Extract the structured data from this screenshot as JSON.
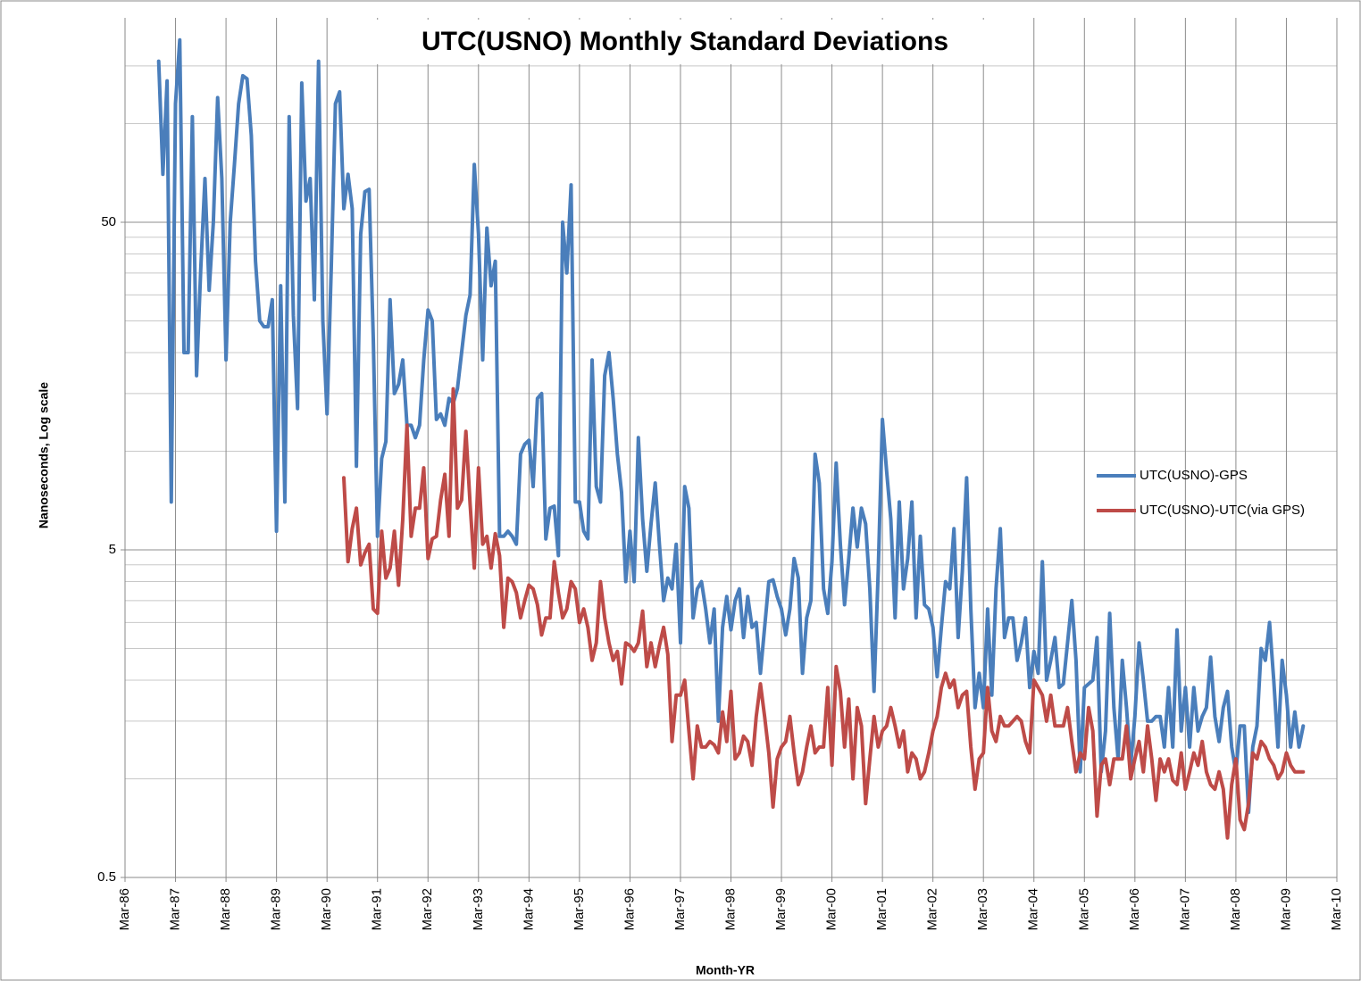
{
  "chart_data": {
    "type": "line",
    "title": "UTC(USNO) Monthly Standard Deviations",
    "x_label": "Month-YR",
    "y_label": "Nanoseconds,  Log scale",
    "log_scale": true,
    "grid": true,
    "legend": "right",
    "ylim": [
      0.5,
      200
    ],
    "yticks": [
      0.5,
      5,
      50
    ],
    "yticks_minor": [
      1,
      1.5,
      2,
      2.5,
      3,
      3.5,
      4,
      4.5,
      10,
      15,
      20,
      25,
      30,
      35,
      40,
      45,
      100,
      150
    ],
    "xlim": [
      "Mar-86",
      "Mar-10"
    ],
    "xticks": [
      "Mar-86",
      "Mar-87",
      "Mar-88",
      "Mar-89",
      "Mar-90",
      "Mar-91",
      "Mar-92",
      "Mar-93",
      "Mar-94",
      "Mar-95",
      "Mar-96",
      "Mar-97",
      "Mar-98",
      "Mar-99",
      "Mar-00",
      "Mar-01",
      "Mar-02",
      "Mar-03",
      "Mar-04",
      "Mar-05",
      "Mar-06",
      "Mar-07",
      "Mar-08",
      "Mar-09",
      "Mar-10"
    ],
    "x": [
      "Nov-86",
      "Dec-86",
      "Jan-87",
      "Feb-87",
      "Mar-87",
      "Apr-87",
      "May-87",
      "Jun-87",
      "Jul-87",
      "Aug-87",
      "Sep-87",
      "Oct-87",
      "Nov-87",
      "Dec-87",
      "Jan-88",
      "Feb-88",
      "Mar-88",
      "Apr-88",
      "May-88",
      "Jun-88",
      "Jul-88",
      "Aug-88",
      "Sep-88",
      "Oct-88",
      "Nov-88",
      "Dec-88",
      "Jan-89",
      "Feb-89",
      "Mar-89",
      "Apr-89",
      "May-89",
      "Jun-89",
      "Jul-89",
      "Aug-89",
      "Sep-89",
      "Oct-89",
      "Nov-89",
      "Dec-89",
      "Jan-90",
      "Feb-90",
      "Mar-90",
      "Apr-90",
      "May-90",
      "Jun-90",
      "Jul-90",
      "Aug-90",
      "Sep-90",
      "Oct-90",
      "Nov-90",
      "Dec-90",
      "Jan-91",
      "Feb-91",
      "Mar-91",
      "Apr-91",
      "May-91",
      "Jun-91",
      "Jul-91",
      "Aug-91",
      "Sep-91",
      "Oct-91",
      "Nov-91",
      "Dec-91",
      "Jan-92",
      "Feb-92",
      "Mar-92",
      "Apr-92",
      "May-92",
      "Jun-92",
      "Jul-92",
      "Aug-92",
      "Sep-92",
      "Oct-92",
      "Nov-92",
      "Dec-92",
      "Jan-93",
      "Feb-93",
      "Mar-93",
      "Apr-93",
      "May-93",
      "Jun-93",
      "Jul-93",
      "Aug-93",
      "Sep-93",
      "Oct-93",
      "Nov-93",
      "Dec-93",
      "Jan-94",
      "Feb-94",
      "Mar-94",
      "Apr-94",
      "May-94",
      "Jun-94",
      "Jul-94",
      "Aug-94",
      "Sep-94",
      "Oct-94",
      "Nov-94",
      "Dec-94",
      "Jan-95",
      "Feb-95",
      "Mar-95",
      "Apr-95",
      "May-95",
      "Jun-95",
      "Jul-95",
      "Aug-95",
      "Sep-95",
      "Oct-95",
      "Nov-95",
      "Dec-95",
      "Jan-96",
      "Feb-96",
      "Mar-96",
      "Apr-96",
      "May-96",
      "Jun-96",
      "Jul-96",
      "Aug-96",
      "Sep-96",
      "Oct-96",
      "Nov-96",
      "Dec-96",
      "Jan-97",
      "Feb-97",
      "Mar-97",
      "Apr-97",
      "May-97",
      "Jun-97",
      "Jul-97",
      "Aug-97",
      "Sep-97",
      "Oct-97",
      "Nov-97",
      "Dec-97",
      "Jan-98",
      "Feb-98",
      "Mar-98",
      "Apr-98",
      "May-98",
      "Jun-98",
      "Jul-98",
      "Aug-98",
      "Sep-98",
      "Oct-98",
      "Nov-98",
      "Dec-98",
      "Jan-99",
      "Feb-99",
      "Mar-99",
      "Apr-99",
      "May-99",
      "Jun-99",
      "Jul-99",
      "Aug-99",
      "Sep-99",
      "Oct-99",
      "Nov-99",
      "Dec-99",
      "Jan-00",
      "Feb-00",
      "Mar-00",
      "Apr-00",
      "May-00",
      "Jun-00",
      "Jul-00",
      "Aug-00",
      "Sep-00",
      "Oct-00",
      "Nov-00",
      "Dec-00",
      "Jan-01",
      "Feb-01",
      "Mar-01",
      "Apr-01",
      "May-01",
      "Jun-01",
      "Jul-01",
      "Aug-01",
      "Sep-01",
      "Oct-01",
      "Nov-01",
      "Dec-01",
      "Jan-02",
      "Feb-02",
      "Mar-02",
      "Apr-02",
      "May-02",
      "Jun-02",
      "Jul-02",
      "Aug-02",
      "Sep-02",
      "Oct-02",
      "Nov-02",
      "Dec-02",
      "Jan-03",
      "Feb-03",
      "Mar-03",
      "Apr-03",
      "May-03",
      "Jun-03",
      "Jul-03",
      "Aug-03",
      "Sep-03",
      "Oct-03",
      "Nov-03",
      "Dec-03",
      "Jan-04",
      "Feb-04",
      "Mar-04",
      "Apr-04",
      "May-04",
      "Jun-04",
      "Jul-04",
      "Aug-04",
      "Sep-04",
      "Oct-04",
      "Nov-04",
      "Dec-04",
      "Jan-05",
      "Feb-05",
      "Mar-05",
      "Apr-05",
      "May-05",
      "Jun-05",
      "Jul-05",
      "Aug-05",
      "Sep-05",
      "Oct-05",
      "Nov-05",
      "Dec-05",
      "Jan-06",
      "Feb-06",
      "Mar-06",
      "Apr-06",
      "May-06",
      "Jun-06",
      "Jul-06",
      "Aug-06",
      "Sep-06",
      "Oct-06",
      "Nov-06",
      "Dec-06",
      "Jan-07",
      "Feb-07",
      "Mar-07",
      "Apr-07",
      "May-07",
      "Jun-07",
      "Jul-07",
      "Aug-07",
      "Sep-07",
      "Oct-07",
      "Nov-07",
      "Dec-07",
      "Jan-08",
      "Feb-08",
      "Mar-08",
      "Apr-08",
      "May-08",
      "Jun-08",
      "Jul-08",
      "Aug-08",
      "Sep-08",
      "Oct-08",
      "Nov-08",
      "Dec-08",
      "Jan-09",
      "Feb-09",
      "Mar-09",
      "Apr-09",
      "May-09",
      "Jun-09",
      "Jul-09"
    ],
    "series": [
      {
        "name": "UTC(USNO)-GPS",
        "color": "#4a7ebb",
        "values": [
          155,
          70,
          135,
          7,
          115,
          180,
          20,
          20,
          105,
          17,
          36,
          68,
          31,
          50,
          120,
          68,
          19,
          50,
          75,
          115,
          140,
          137,
          92,
          38,
          25,
          24,
          24,
          29,
          5.7,
          32,
          7,
          105,
          26,
          13.5,
          133,
          58,
          68,
          29,
          155,
          25,
          13,
          36,
          115,
          125,
          55,
          70,
          55,
          9,
          46,
          62,
          63,
          22,
          5.5,
          9.5,
          10.7,
          29,
          15,
          16,
          19,
          12,
          12,
          11,
          12,
          19,
          27,
          25,
          12.5,
          13,
          12,
          14.5,
          14,
          15.5,
          20,
          26,
          30,
          75,
          46,
          19,
          48,
          32,
          38,
          5.5,
          5.5,
          5.7,
          5.5,
          5.2,
          9.8,
          10.5,
          10.8,
          7.8,
          14.5,
          15,
          5.4,
          6.7,
          6.8,
          4.8,
          50,
          35,
          65,
          7,
          7,
          5.7,
          5.4,
          19,
          7.8,
          7,
          17,
          20,
          14.5,
          9.8,
          7.5,
          4,
          5.7,
          4,
          11,
          6.2,
          4.3,
          6,
          8,
          5.2,
          3.5,
          4.1,
          3.8,
          5.2,
          2.6,
          7.8,
          6.7,
          3.1,
          3.8,
          4,
          3.3,
          2.6,
          3.3,
          1.5,
          2.9,
          3.6,
          2.85,
          3.5,
          3.8,
          2.7,
          3.6,
          2.9,
          3,
          2.1,
          2.9,
          4,
          4.05,
          3.6,
          3.3,
          2.75,
          3.3,
          4.7,
          4.1,
          2.1,
          3.1,
          3.5,
          9.8,
          8,
          3.8,
          3.2,
          4.6,
          9.2,
          5.2,
          3.4,
          4.7,
          6.7,
          5.1,
          6.7,
          6,
          3.8,
          1.85,
          4.3,
          12.5,
          8.7,
          6.2,
          3.1,
          7,
          3.8,
          4.7,
          7,
          3.1,
          5.5,
          3.4,
          3.3,
          2.9,
          2.05,
          2.9,
          4,
          3.8,
          5.8,
          2.7,
          4.3,
          8.3,
          3.3,
          1.65,
          2.1,
          1.65,
          3.3,
          1.8,
          3.8,
          5.8,
          2.7,
          3.1,
          3.1,
          2.3,
          2.6,
          3.1,
          1.9,
          2.45,
          2.1,
          4.6,
          2,
          2.3,
          2.7,
          1.9,
          1.95,
          2.6,
          3.5,
          2.3,
          1.05,
          1.9,
          1.95,
          2,
          2.7,
          1.05,
          1.4,
          3.2,
          1.65,
          1.15,
          2.3,
          1.65,
          1.1,
          1.55,
          2.6,
          2,
          1.5,
          1.5,
          1.55,
          1.55,
          1.25,
          1.9,
          1.25,
          2.85,
          1.4,
          1.9,
          1.25,
          1.9,
          1.4,
          1.55,
          1.65,
          2.35,
          1.55,
          1.3,
          1.65,
          1.85,
          1.25,
          1.05,
          1.45,
          1.45,
          0.79,
          1.25,
          1.45,
          2.5,
          2.3,
          3,
          2,
          1.25,
          2.3,
          1.8,
          1.25,
          1.6,
          1.25,
          1.45
        ]
      },
      {
        "name": "UTC(USNO)-UTC(via  GPS)",
        "color": "#be4b48",
        "values": [
          null,
          null,
          null,
          null,
          null,
          null,
          null,
          null,
          null,
          null,
          null,
          null,
          null,
          null,
          null,
          null,
          null,
          null,
          null,
          null,
          null,
          null,
          null,
          null,
          null,
          null,
          null,
          null,
          null,
          null,
          null,
          null,
          null,
          null,
          null,
          null,
          null,
          null,
          null,
          null,
          null,
          null,
          null,
          null,
          8.3,
          4.6,
          5.8,
          6.7,
          4.5,
          4.9,
          5.2,
          3.3,
          3.2,
          5.7,
          4.1,
          4.4,
          5.7,
          3.9,
          6.2,
          12,
          5.5,
          6.7,
          6.7,
          8.9,
          4.7,
          5.4,
          5.5,
          7.1,
          8.5,
          5.5,
          15.5,
          6.7,
          7.1,
          11.5,
          6.9,
          4.4,
          8.9,
          5.2,
          5.5,
          4.4,
          5.6,
          4.8,
          2.9,
          4.1,
          4,
          3.7,
          3.1,
          3.5,
          3.9,
          3.8,
          3.4,
          2.75,
          3.1,
          3.1,
          4.6,
          3.7,
          3.1,
          3.3,
          4,
          3.8,
          3,
          3.3,
          2.9,
          2.3,
          2.6,
          4,
          3.1,
          2.6,
          2.3,
          2.45,
          1.95,
          2.6,
          2.55,
          2.45,
          2.6,
          3.25,
          2.2,
          2.6,
          2.2,
          2.55,
          2.9,
          2.4,
          1.3,
          1.8,
          1.8,
          2,
          1.4,
          1.0,
          1.45,
          1.25,
          1.25,
          1.3,
          1.27,
          1.2,
          1.6,
          1.3,
          1.85,
          1.15,
          1.2,
          1.35,
          1.3,
          1.1,
          1.55,
          1.95,
          1.55,
          1.2,
          0.82,
          1.15,
          1.25,
          1.3,
          1.55,
          1.2,
          0.96,
          1.05,
          1.25,
          1.45,
          1.2,
          1.25,
          1.25,
          1.9,
          1.1,
          2.2,
          1.85,
          1.25,
          1.75,
          1.0,
          1.65,
          1.45,
          0.84,
          1.15,
          1.55,
          1.25,
          1.4,
          1.45,
          1.65,
          1.45,
          1.25,
          1.4,
          1.05,
          1.2,
          1.15,
          1.0,
          1.05,
          1.2,
          1.4,
          1.55,
          1.9,
          2.1,
          1.9,
          2,
          1.65,
          1.8,
          1.85,
          1.25,
          0.93,
          1.15,
          1.2,
          1.9,
          1.4,
          1.3,
          1.55,
          1.45,
          1.45,
          1.5,
          1.55,
          1.5,
          1.3,
          1.2,
          2,
          1.9,
          1.8,
          1.5,
          1.8,
          1.45,
          1.45,
          1.45,
          1.65,
          1.3,
          1.05,
          1.2,
          1.15,
          1.65,
          1.4,
          0.77,
          1.1,
          1.15,
          0.96,
          1.15,
          1.15,
          1.15,
          1.45,
          1.0,
          1.15,
          1.3,
          1.05,
          1.45,
          1.15,
          0.86,
          1.15,
          1.05,
          1.15,
          0.99,
          0.96,
          1.2,
          0.93,
          1.05,
          1.2,
          1.1,
          1.3,
          1.05,
          0.96,
          0.93,
          1.05,
          0.93,
          0.66,
          0.96,
          1.15,
          0.75,
          0.7,
          0.84,
          1.2,
          1.15,
          1.3,
          1.25,
          1.15,
          1.1,
          1.0,
          1.05,
          1.2,
          1.1,
          1.05,
          1.05,
          1.05
        ]
      }
    ]
  }
}
